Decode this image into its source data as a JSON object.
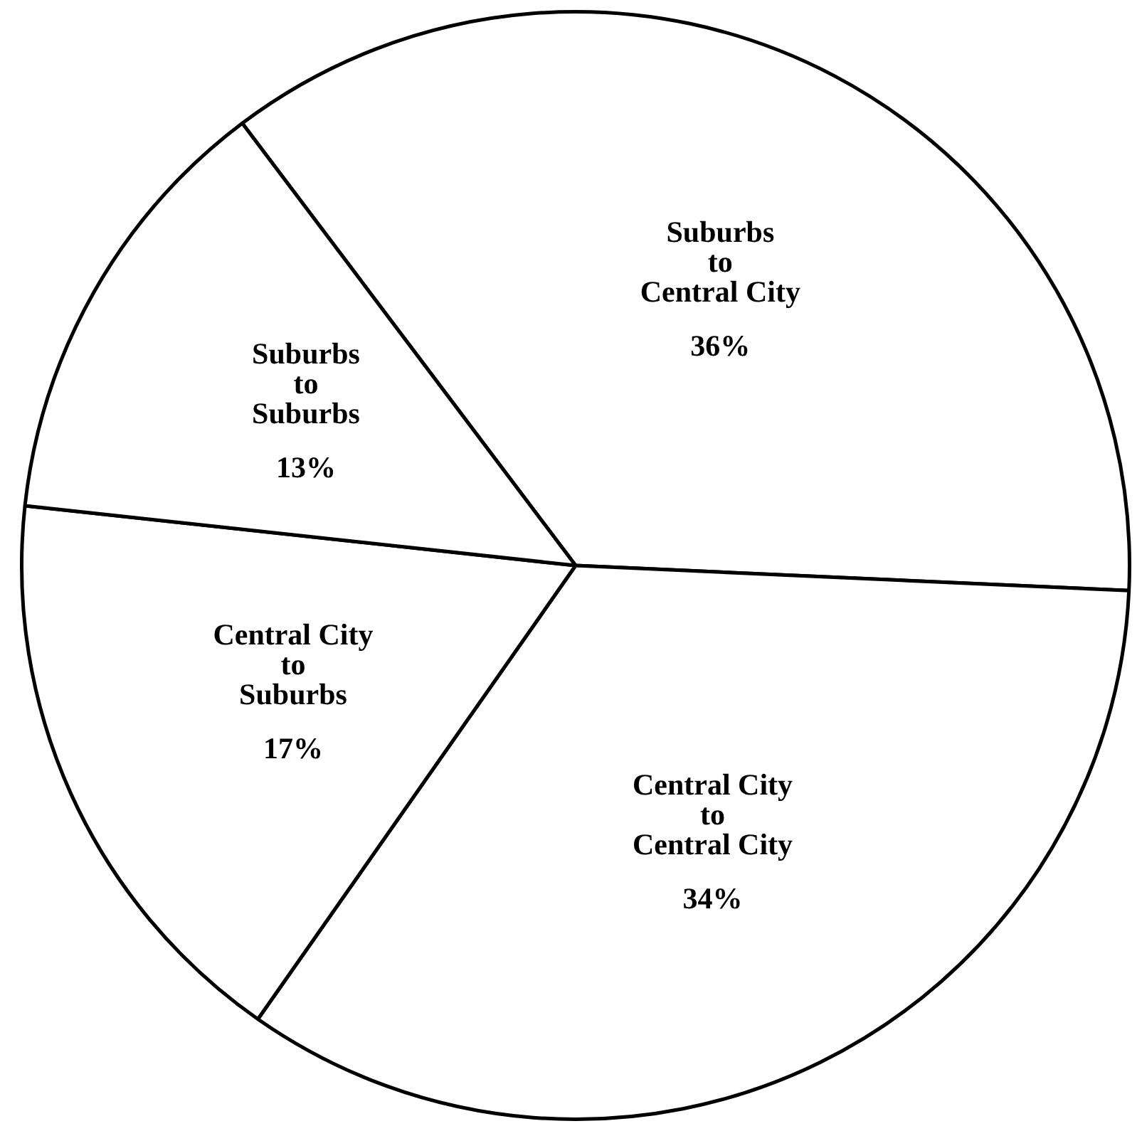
{
  "chart_data": {
    "type": "pie",
    "categories": [
      "Suburbs\nto\nCentral City",
      "Central City\nto\nCentral City",
      "Central City\nto\nSuburbs",
      "Suburbs\nto\nSuburbs"
    ],
    "values": [
      36,
      34,
      17,
      13
    ],
    "value_labels": [
      "36%",
      "34%",
      "17%",
      "13%"
    ],
    "colors": [
      "#ffffff",
      "#ffffff",
      "#ffffff",
      "#ffffff"
    ],
    "legend": false
  }
}
